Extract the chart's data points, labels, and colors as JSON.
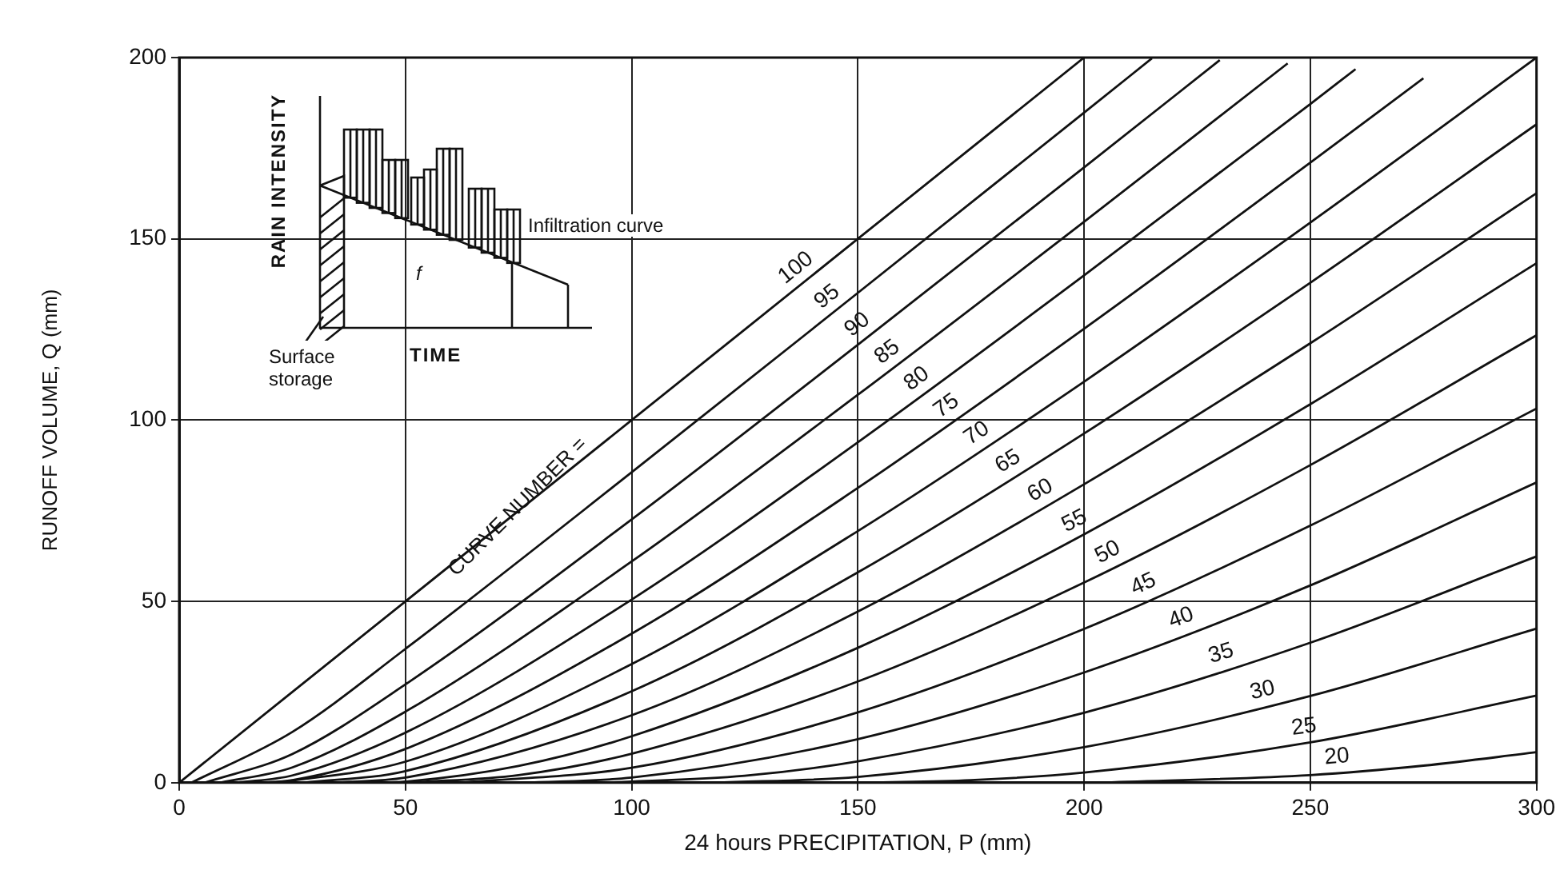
{
  "chart_data": {
    "type": "line",
    "xlabel": "24 hours PRECIPITATION, P (mm)",
    "ylabel": "RUNOFF VOLUME, Q (mm)",
    "xlim": [
      0,
      300
    ],
    "xticks": [
      0,
      50,
      100,
      150,
      200,
      250,
      300
    ],
    "ylim": [
      0,
      200
    ],
    "yticks": [
      0,
      50,
      100,
      150,
      200
    ],
    "grid": true,
    "legend": false,
    "marker": "none",
    "line_style": "solid",
    "annotations": [
      "CURVE NUMBER =",
      "RAIN INTENSITY",
      "TIME",
      "Infiltration curve",
      "f",
      "Surface storage"
    ],
    "series": [
      {
        "name": "100",
        "color": "#111111",
        "x": [
          0,
          50,
          100,
          150,
          200
        ],
        "values": [
          0,
          50,
          100,
          150,
          200
        ]
      },
      {
        "name": "95",
        "color": "#111111",
        "x": [
          2.7,
          25,
          50,
          100,
          150,
          200,
          215
        ],
        "values": [
          0,
          14.0,
          36.9,
          85.6,
          135.1,
          184.8,
          199.8
        ]
      },
      {
        "name": "90",
        "color": "#111111",
        "x": [
          5.6,
          25,
          50,
          100,
          150,
          200,
          230
        ],
        "values": [
          0,
          7.9,
          27.1,
          72.6,
          120.8,
          169.7,
          199.3
        ]
      },
      {
        "name": "85",
        "color": "#111111",
        "x": [
          9,
          25,
          50,
          100,
          150,
          200,
          245
        ],
        "values": [
          0,
          4.2,
          19.6,
          61.0,
          107.0,
          154.7,
          198.4
        ]
      },
      {
        "name": "80",
        "color": "#111111",
        "x": [
          12.7,
          25,
          50,
          100,
          150,
          200,
          250,
          260
        ],
        "values": [
          0,
          2.0,
          13.8,
          50.5,
          93.9,
          139.9,
          187.2,
          196.8
        ]
      },
      {
        "name": "75",
        "color": "#111111",
        "x": [
          16.9,
          25,
          50,
          100,
          150,
          200,
          250,
          275
        ],
        "values": [
          0,
          0.7,
          9.3,
          41.1,
          81.3,
          125.2,
          171.0,
          194.3
        ]
      },
      {
        "name": "70",
        "color": "#111111",
        "x": [
          21.8,
          50,
          100,
          150,
          200,
          250,
          300
        ],
        "values": [
          0,
          5.8,
          32.7,
          69.4,
          110.6,
          154.5,
          200.0
        ]
      },
      {
        "name": "65",
        "color": "#111111",
        "x": [
          27.4,
          50,
          100,
          150,
          200,
          250,
          300
        ],
        "values": [
          0,
          3.2,
          25.2,
          58.0,
          96.3,
          137.9,
          181.6
        ]
      },
      {
        "name": "60",
        "color": "#111111",
        "x": [
          33.9,
          50,
          100,
          150,
          200,
          250,
          300
        ],
        "values": [
          0,
          1.4,
          18.6,
          47.2,
          82.3,
          121.2,
          162.6
        ]
      },
      {
        "name": "55",
        "color": "#111111",
        "x": [
          41.6,
          50,
          75,
          100,
          150,
          200,
          250,
          300
        ],
        "values": [
          0,
          0.3,
          4.6,
          12.8,
          37.2,
          68.5,
          104.4,
          143.3
        ]
      },
      {
        "name": "50",
        "color": "#111111",
        "x": [
          50.8,
          75,
          100,
          150,
          200,
          250,
          300
        ],
        "values": [
          0,
          2.1,
          8.0,
          27.9,
          55.2,
          87.6,
          123.4
        ]
      },
      {
        "name": "45",
        "color": "#111111",
        "x": [
          62.1,
          100,
          150,
          200,
          250,
          300
        ],
        "values": [
          0,
          4.1,
          19.4,
          42.4,
          70.9,
          103.2
        ]
      },
      {
        "name": "40",
        "color": "#111111",
        "x": [
          76.2,
          100,
          150,
          200,
          250,
          300
        ],
        "values": [
          0,
          1.4,
          12.0,
          30.4,
          54.4,
          82.8
        ]
      },
      {
        "name": "35",
        "color": "#111111",
        "x": [
          94.3,
          125,
          150,
          200,
          250,
          300
        ],
        "values": [
          0,
          1.9,
          5.9,
          19.3,
          38.6,
          62.4
        ]
      },
      {
        "name": "30",
        "color": "#111111",
        "x": [
          118.5,
          150,
          200,
          250,
          300
        ],
        "values": [
          0,
          1.6,
          9.8,
          23.9,
          42.5
        ]
      },
      {
        "name": "25",
        "color": "#111111",
        "x": [
          152.4,
          175,
          200,
          250,
          300
        ],
        "values": [
          0,
          0.7,
          2.8,
          11.1,
          24.0
        ]
      },
      {
        "name": "20",
        "color": "#111111",
        "x": [
          203.2,
          250,
          275,
          300
        ],
        "values": [
          0,
          2.1,
          4.7,
          8.4
        ]
      }
    ]
  }
}
